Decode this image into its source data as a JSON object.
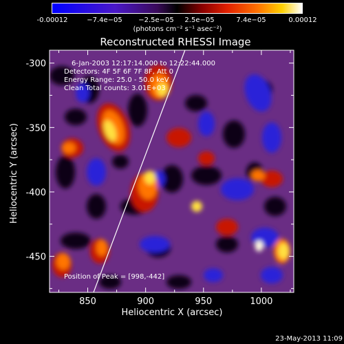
{
  "chart_data": {
    "type": "heatmap",
    "title": "Reconstructed RHESSI Image",
    "xlabel": "Heliocentric X (arcsec)",
    "ylabel": "Heliocentric Y (arcsec)",
    "xlim": [
      817,
      1028
    ],
    "ylim": [
      -478,
      -290
    ],
    "x_ticks": [
      "850",
      "900",
      "950",
      "1000"
    ],
    "x_tick_values": [
      850,
      900,
      950,
      1000
    ],
    "y_ticks": [
      "-300",
      "-350",
      "-400",
      "-450"
    ],
    "y_tick_values": [
      -300,
      -350,
      -400,
      -450
    ],
    "colorbar": {
      "ticks": [
        "-0.00012",
        "−7.4e−05",
        "−2.5e−05",
        "2.5e−05",
        "7.4e−05",
        "0.00012"
      ],
      "tick_values": [
        -0.00012,
        -7.4e-05,
        -2.5e-05,
        2.5e-05,
        7.4e-05,
        0.00012
      ],
      "range": [
        -0.00012,
        0.00012
      ],
      "units": "(photons cm⁻² s⁻¹ asec⁻²)"
    },
    "limb_line": {
      "x": [
        855,
        934
      ],
      "y": [
        -478,
        -290
      ]
    },
    "peak": {
      "x": 998,
      "y": -442
    },
    "grid": false
  },
  "annotations": {
    "time_range": "6-Jan-2003 12:17:14.000 to 12:22:44.000",
    "detectors": "Detectors: 4F 5F 6F 7F 8F, Att 0",
    "energy_range": "Energy Range: 25.0 - 50.0 keV",
    "clean": "Clean    Total counts: 3.01E+03",
    "peak_position": "Position of Peak = [998,-442]"
  },
  "footer": {
    "date": "23-May-2013 11:09"
  }
}
